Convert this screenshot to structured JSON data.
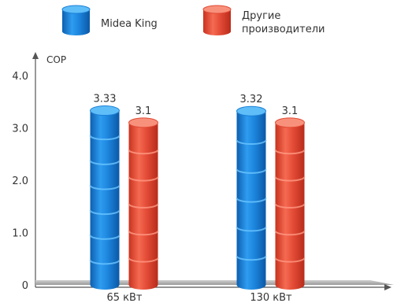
{
  "chart_data": {
    "type": "bar",
    "title": "",
    "xlabel": "",
    "ylabel": "COP",
    "ylim": [
      0,
      4
    ],
    "yticks": [
      "0",
      "1.0",
      "2.0",
      "3.0",
      "4.0"
    ],
    "categories": [
      "65 кВт",
      "130 кВт"
    ],
    "legend_position": "top",
    "series": [
      {
        "name": "Midea King",
        "legend_lines": [
          "Midea King"
        ],
        "color": "#1c86e0",
        "values": [
          3.33,
          3.32
        ],
        "labels": [
          "3.33",
          "3.32"
        ]
      },
      {
        "name": "Другие производители",
        "legend_lines": [
          "Другие",
          "производители"
        ],
        "color": "#e64a35",
        "values": [
          3.1,
          3.1
        ],
        "labels": [
          "3.1",
          "3.1"
        ]
      }
    ]
  }
}
